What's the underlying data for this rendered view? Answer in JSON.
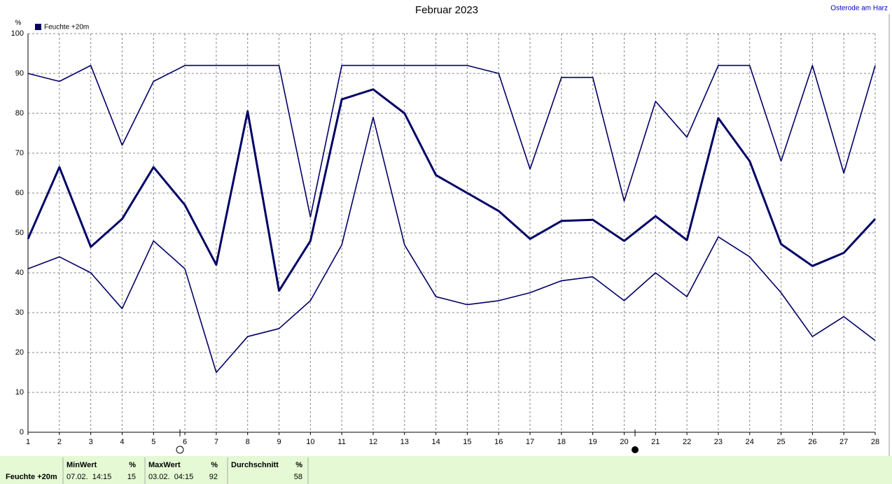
{
  "chart_data": {
    "type": "line",
    "title": "Februar 2023",
    "location": "Osterode am Harz",
    "y_unit": "%",
    "x": [
      1,
      2,
      3,
      4,
      5,
      6,
      7,
      8,
      9,
      10,
      11,
      12,
      13,
      14,
      15,
      16,
      17,
      18,
      19,
      20,
      21,
      22,
      23,
      24,
      25,
      26,
      27,
      28
    ],
    "xlim": [
      1,
      28
    ],
    "xticks": [
      1,
      2,
      3,
      4,
      5,
      6,
      7,
      8,
      9,
      10,
      11,
      12,
      13,
      14,
      15,
      16,
      17,
      18,
      19,
      20,
      21,
      22,
      23,
      24,
      25,
      26,
      27,
      28
    ],
    "ylim": [
      0,
      100
    ],
    "yticks": [
      0,
      10,
      20,
      30,
      40,
      50,
      60,
      70,
      80,
      90,
      100
    ],
    "grid": true,
    "series": [
      {
        "name": "Feuchte +20m",
        "color": "#000066",
        "values": [
          48.5,
          66.5,
          46.5,
          53.5,
          66.5,
          57,
          42,
          80.5,
          35.5,
          48,
          83.5,
          86,
          80,
          64.5,
          60,
          55.5,
          48.5,
          53,
          53.3,
          48,
          54.2,
          48.2,
          78.8,
          68,
          47.2,
          41.7,
          45,
          53.5
        ]
      },
      {
        "color": "#000066",
        "values": [
          90,
          88,
          92,
          72,
          88,
          92,
          92,
          92,
          92,
          54,
          92,
          92,
          92,
          92,
          92,
          90,
          66,
          89,
          89,
          58,
          83,
          74,
          92,
          92,
          68,
          92,
          65,
          92
        ]
      },
      {
        "color": "#000066",
        "values": [
          41,
          44,
          40,
          31,
          48,
          41,
          15,
          24,
          26,
          33,
          47,
          79,
          47,
          34,
          32,
          33,
          35,
          38,
          39,
          33,
          40,
          34,
          49,
          44,
          35,
          24,
          29,
          23
        ]
      }
    ]
  },
  "summary": {
    "label": "Feuchte +20m",
    "columns": [
      {
        "header": "MinWert",
        "unit": "%",
        "time": "07.02.  14:15",
        "value": 15
      },
      {
        "header": "MaxWert",
        "unit": "%",
        "time": "03.02.  04:15",
        "value": 92
      },
      {
        "header": "Durchschnitt",
        "unit": "%",
        "value": 58
      }
    ]
  }
}
